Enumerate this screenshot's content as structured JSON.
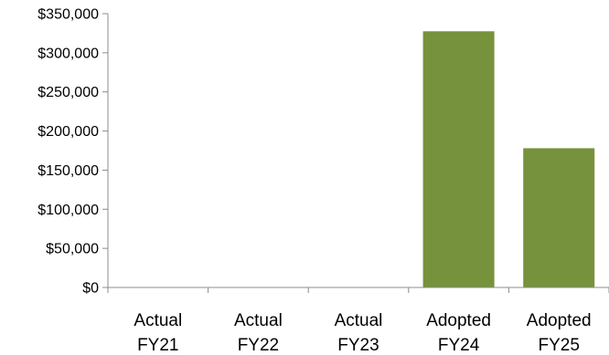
{
  "chart_data": {
    "type": "bar",
    "title": "",
    "xlabel": "",
    "ylabel": "",
    "categories": [
      [
        "Actual",
        "FY21"
      ],
      [
        "Actual",
        "FY22"
      ],
      [
        "Actual",
        "FY23"
      ],
      [
        "Adopted",
        "FY24"
      ],
      [
        "Adopted",
        "FY25"
      ]
    ],
    "values": [
      0,
      0,
      0,
      327500,
      178000
    ],
    "ylim": [
      0,
      350000
    ],
    "y_ticks": [
      0,
      50000,
      100000,
      150000,
      200000,
      250000,
      300000,
      350000
    ],
    "y_tick_labels": [
      "$0",
      "$50,000",
      "$100,000",
      "$150,000",
      "$200,000",
      "$250,000",
      "$300,000",
      "$350,000"
    ],
    "grid": false,
    "legend": "none",
    "colors": {
      "bar": "#77923c",
      "axis": "#8c8c8c"
    }
  }
}
